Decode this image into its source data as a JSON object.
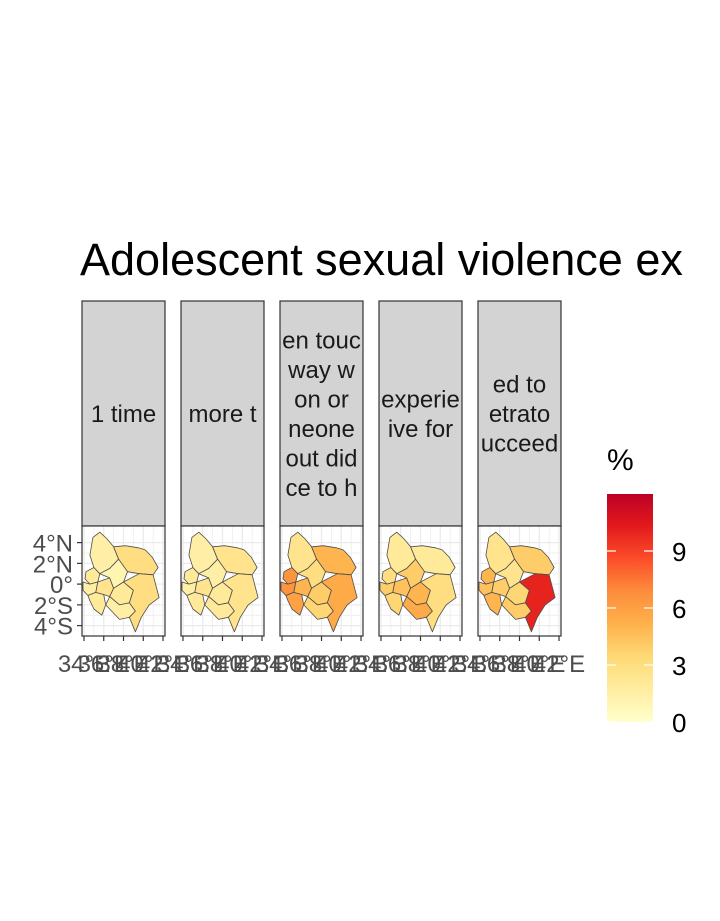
{
  "chart_data": {
    "type": "choropleth-map",
    "title": "Adolescent sexual violence ex",
    "panels": [
      {
        "strip_lines": [
          "1 time"
        ]
      },
      {
        "strip_lines": [
          "more t"
        ]
      },
      {
        "strip_lines": [
          "en touc",
          " way w",
          "on or ",
          "neone",
          "out did",
          "ce to h"
        ]
      },
      {
        "strip_lines": [
          "experie",
          "ive for"
        ]
      },
      {
        "strip_lines": [
          "ed to ",
          "etrato",
          "ucceed"
        ]
      }
    ],
    "region_values": [
      [
        2,
        1.5,
        2,
        2.5,
        1.5,
        3,
        1,
        2,
        1.5,
        3
      ],
      [
        2,
        1.5,
        2,
        2.5,
        1.5,
        2.5,
        1.5,
        2,
        2,
        2.5
      ],
      [
        6.5,
        6.5,
        6,
        5,
        2.5,
        5,
        3,
        4,
        3.5,
        5.5
      ],
      [
        3,
        4,
        3.5,
        4.5,
        2,
        2,
        4,
        5,
        5.5,
        3
      ],
      [
        5,
        4.5,
        5,
        4,
        2.5,
        4,
        2.5,
        3.5,
        4,
        10
      ]
    ],
    "background_value": 0,
    "y_axis": {
      "ticks": [
        4,
        2,
        0,
        -2,
        -4
      ],
      "tick_labels": [
        "4°N",
        "2°N",
        "0°",
        "2°S",
        "4°S"
      ]
    },
    "x_axis": {
      "ticks": [
        34,
        36,
        38,
        40,
        42
      ],
      "tick_labels": [
        "34°E",
        "36°E",
        "38°E",
        "40°E",
        "42°E"
      ]
    },
    "lon_range": [
      33.8,
      42.2
    ],
    "lat_range": [
      -5,
      5.6
    ],
    "legend": {
      "title": "%",
      "breaks": [
        9,
        6,
        3,
        0
      ],
      "break_labels": [
        "9",
        "6",
        "3",
        "0"
      ],
      "range": [
        0,
        12
      ],
      "palette": [
        "#ffffcc",
        "#ffeda0",
        "#fed976",
        "#feb24c",
        "#fd8d3c",
        "#fc4e2a",
        "#e31a1c",
        "#bd0026"
      ],
      "position": "right"
    },
    "colors": {
      "strip_fill": "#d3d3d3",
      "grid": "#ebebeb",
      "border": "#333333",
      "region_stroke": "#4d4d4d"
    }
  }
}
